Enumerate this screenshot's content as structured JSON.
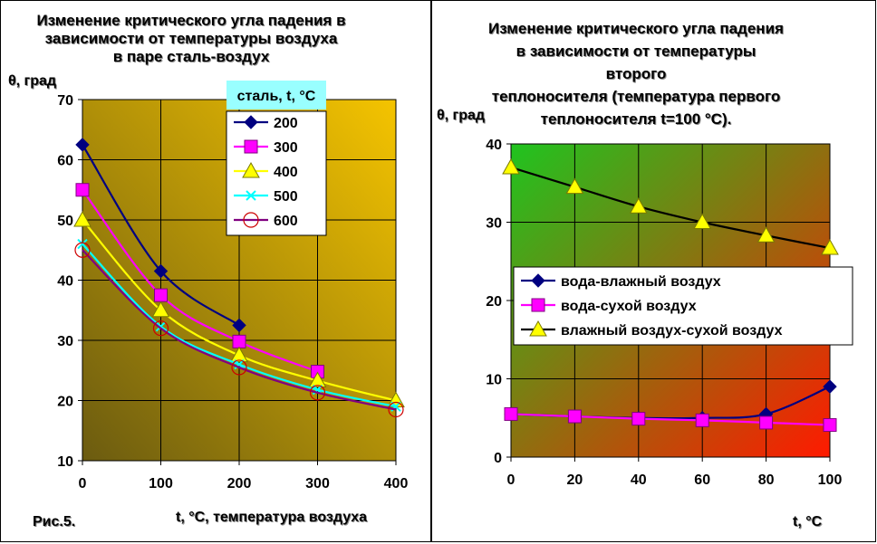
{
  "figure_label": "Рис.5.",
  "colors": {
    "left_grad_start": "#6b5b10",
    "left_grad_end": "#f5c400",
    "right_grad_start": "#1fc41f",
    "right_grad_end": "#ff1a00",
    "legend_title_bg": "#99ffff"
  },
  "chart_data": [
    {
      "type": "line",
      "title": "Изменение критического угла падения в\nзависимости от температуры воздуха\nв паре сталь-воздух",
      "ylabel": "θ, град",
      "xlabel": "t, °C, температура воздуха",
      "legend_title": "сталь, t, °C",
      "legend_position": "top-right",
      "grid": true,
      "xlim": [
        0,
        400
      ],
      "ylim": [
        10,
        70
      ],
      "x_ticks": [
        "0",
        "100",
        "200",
        "300",
        "400"
      ],
      "y_ticks": [
        "10",
        "20",
        "30",
        "40",
        "50",
        "60",
        "70"
      ],
      "series": [
        {
          "name": "200",
          "color": "#000080",
          "marker": "diamond",
          "x": [
            0,
            100,
            200
          ],
          "values": [
            62.5,
            41.5,
            32.5
          ]
        },
        {
          "name": "300",
          "color": "#ff00ff",
          "marker": "square",
          "x": [
            0,
            100,
            200,
            300
          ],
          "values": [
            55,
            37.5,
            29.8,
            24.8
          ]
        },
        {
          "name": "400",
          "color": "#ffff00",
          "marker": "triangle",
          "x": [
            0,
            100,
            200,
            300,
            400
          ],
          "values": [
            50,
            35,
            27.5,
            23.3,
            20
          ]
        },
        {
          "name": "500",
          "color": "#00ffff",
          "marker": "x",
          "x": [
            0,
            100,
            200,
            300,
            400
          ],
          "values": [
            46,
            32.3,
            26,
            21.8,
            19
          ]
        },
        {
          "name": "600",
          "color": "#800080",
          "marker": "circle",
          "x": [
            0,
            100,
            200,
            300,
            400
          ],
          "values": [
            45,
            32,
            25.5,
            21.3,
            18.5
          ]
        }
      ]
    },
    {
      "type": "line",
      "title": "Изменение критического угла падения\nв зависимости от температуры\nвторого\nтеплоносителя (температура первого\nтеплоносителя t=100 °C).",
      "ylabel": "θ, град",
      "xlabel": "t, °C",
      "legend_position": "center-right",
      "grid": true,
      "xlim": [
        0,
        100
      ],
      "ylim": [
        0,
        40
      ],
      "x_ticks": [
        "0",
        "20",
        "40",
        "60",
        "80",
        "100"
      ],
      "y_ticks": [
        "0",
        "10",
        "20",
        "30",
        "40"
      ],
      "series": [
        {
          "name": "вода-влажный воздух",
          "color": "#000080",
          "marker": "diamond",
          "x": [
            0,
            20,
            40,
            60,
            80,
            100
          ],
          "values": [
            5.5,
            5.2,
            5,
            5,
            5.5,
            9
          ]
        },
        {
          "name": "вода-сухой воздух",
          "color": "#ff00ff",
          "marker": "square",
          "x": [
            0,
            20,
            40,
            60,
            80,
            100
          ],
          "values": [
            5.5,
            5.2,
            4.9,
            4.7,
            4.4,
            4.1
          ]
        },
        {
          "name": "влажный воздух-сухой воздух",
          "color": "#ffff00",
          "line_color": "#000000",
          "marker": "triangle",
          "x": [
            0,
            20,
            40,
            60,
            80,
            100
          ],
          "values": [
            37,
            34.5,
            32,
            30,
            28.3,
            26.7
          ]
        }
      ]
    }
  ]
}
